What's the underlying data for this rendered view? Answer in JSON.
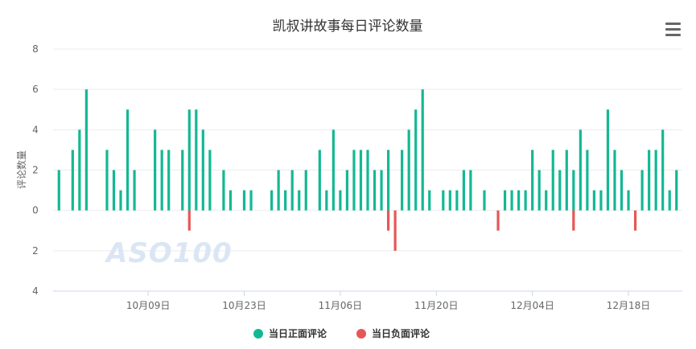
{
  "menu_icon": "hamburger-menu-icon",
  "watermark": "ASO100",
  "chart_data": {
    "type": "bar",
    "title": "凯叔讲故事每日评论数量",
    "ylabel": "评论数量",
    "xlabel": "",
    "y_tick_labels": [
      "4",
      "2",
      "0",
      "2",
      "4",
      "6",
      "8"
    ],
    "y_tick_values": [
      -4,
      -2,
      0,
      2,
      4,
      6,
      8
    ],
    "ylim": [
      -4,
      8
    ],
    "grid": true,
    "legend_position": "bottom-center",
    "start_date": "2018-09-26",
    "x_tick_labels": [
      {
        "label": "10月09日",
        "day_index": 13
      },
      {
        "label": "10月23日",
        "day_index": 27
      },
      {
        "label": "11月06日",
        "day_index": 41
      },
      {
        "label": "11月20日",
        "day_index": 55
      },
      {
        "label": "12月04日",
        "day_index": 69
      },
      {
        "label": "12月18日",
        "day_index": 83
      }
    ],
    "series": [
      {
        "name": "当日正面评论",
        "color": "#13b893",
        "values": [
          2,
          0,
          3,
          4,
          6,
          0,
          0,
          3,
          2,
          1,
          5,
          2,
          0,
          0,
          4,
          3,
          3,
          0,
          3,
          5,
          5,
          4,
          3,
          0,
          2,
          1,
          0,
          1,
          1,
          0,
          0,
          1,
          2,
          1,
          2,
          1,
          2,
          0,
          3,
          1,
          4,
          1,
          2,
          3,
          3,
          3,
          2,
          2,
          3,
          0,
          3,
          4,
          5,
          6,
          1,
          0,
          1,
          1,
          1,
          2,
          2,
          0,
          1,
          0,
          0,
          1,
          1,
          1,
          1,
          3,
          2,
          1,
          3,
          2,
          3,
          2,
          4,
          3,
          1,
          1,
          5,
          3,
          2,
          1,
          0,
          2,
          3,
          3,
          4,
          1,
          2
        ]
      },
      {
        "name": "当日负面评论",
        "color": "#e55757",
        "values": [
          0,
          0,
          0,
          0,
          0,
          0,
          0,
          0,
          0,
          0,
          0,
          0,
          0,
          0,
          0,
          0,
          0,
          0,
          0,
          1,
          0,
          0,
          0,
          0,
          0,
          0,
          0,
          0,
          0,
          0,
          0,
          0,
          0,
          0,
          0,
          0,
          0,
          0,
          0,
          0,
          0,
          0,
          0,
          0,
          0,
          0,
          0,
          0,
          1,
          2,
          0,
          0,
          0,
          0,
          0,
          0,
          0,
          0,
          0,
          0,
          0,
          0,
          0,
          0,
          1,
          0,
          0,
          0,
          0,
          0,
          0,
          0,
          0,
          0,
          0,
          1,
          0,
          0,
          0,
          0,
          0,
          0,
          0,
          0,
          1,
          0,
          0,
          0,
          0,
          0,
          0
        ]
      }
    ]
  }
}
